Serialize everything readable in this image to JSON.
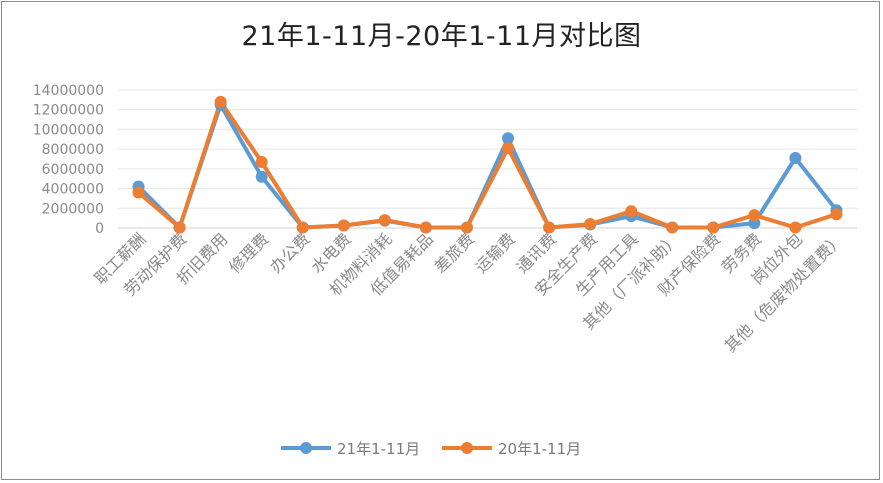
{
  "chart_data": {
    "type": "line",
    "title": "21年1-11月-20年1-11月对比图",
    "xlabel": "",
    "ylabel": "",
    "ylim": [
      0,
      14000000
    ],
    "y_ticks": [
      "0",
      "2000000",
      "4000000",
      "6000000",
      "8000000",
      "10000000",
      "12000000",
      "14000000"
    ],
    "grid": true,
    "legend_position": "bottom",
    "categories": [
      "职工薪酬",
      "劳动保护费",
      "折旧费用",
      "修理费",
      "办公费",
      "水电费",
      "机物料消耗",
      "低值易耗品",
      "差旅费",
      "运输费",
      "通讯费",
      "安全生产费",
      "生产用工具",
      "其他（厂派补助）",
      "财产保险费",
      "劳务费",
      "岗位外包",
      "其他（危废物处置费）"
    ],
    "series": [
      {
        "name": "21年1-11月",
        "color": "#5b9bd5",
        "values": [
          4200000,
          50000,
          12500000,
          5200000,
          50000,
          250000,
          750000,
          50000,
          50000,
          9100000,
          50000,
          350000,
          1200000,
          50000,
          50000,
          500000,
          7100000,
          1800000
        ]
      },
      {
        "name": "20年1-11月",
        "color": "#ed7d31",
        "values": [
          3600000,
          50000,
          12800000,
          6700000,
          50000,
          250000,
          800000,
          50000,
          50000,
          8100000,
          50000,
          400000,
          1700000,
          50000,
          50000,
          1300000,
          50000,
          1400000
        ]
      }
    ]
  }
}
